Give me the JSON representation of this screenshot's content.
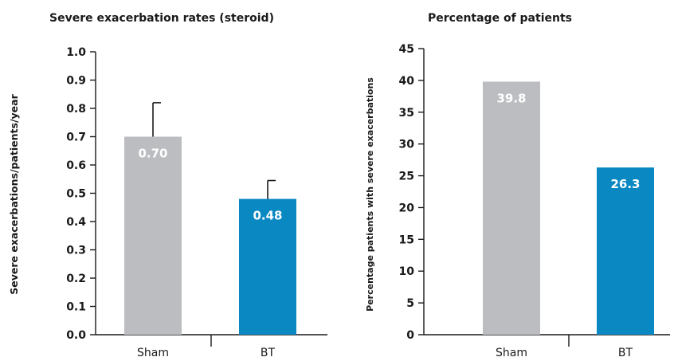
{
  "chart_data": [
    {
      "type": "bar",
      "title": "Severe exacerbation rates (steroid)",
      "ylabel": "Severe exacerbations/patients/year",
      "xlabel": "",
      "categories": [
        "Sham",
        "BT"
      ],
      "values": [
        0.7,
        0.48
      ],
      "data_labels": [
        "0.70",
        "0.48"
      ],
      "error_upper": [
        0.82,
        0.545
      ],
      "ylim": [
        0,
        1.0
      ],
      "yticks": [
        "0.0",
        "0.1",
        "0.2",
        "0.3",
        "0.4",
        "0.5",
        "0.6",
        "0.7",
        "0.8",
        "0.9",
        "1.0"
      ],
      "colors": [
        "#bcbdc0",
        "#0a88c2"
      ],
      "grid": false,
      "legend": "none"
    },
    {
      "type": "bar",
      "title": "Percentage of patients",
      "ylabel": "Percentage patients with severe exacerbations",
      "xlabel": "",
      "categories": [
        "Sham",
        "BT"
      ],
      "values": [
        39.8,
        26.3
      ],
      "data_labels": [
        "39.8",
        "26.3"
      ],
      "ylim": [
        0,
        45
      ],
      "yticks": [
        "0",
        "5",
        "10",
        "15",
        "20",
        "25",
        "30",
        "35",
        "40",
        "45"
      ],
      "colors": [
        "#bcbdc0",
        "#0a88c2"
      ],
      "grid": false,
      "legend": "none"
    }
  ]
}
